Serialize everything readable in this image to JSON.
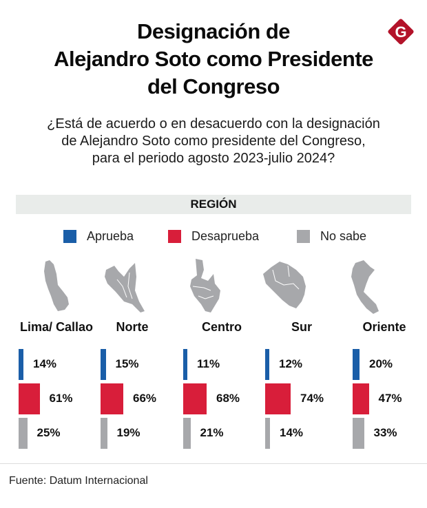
{
  "header": {
    "title_lines": [
      "Designación de",
      "Alejandro Soto como Presidente",
      "del Congreso"
    ],
    "logo_letter": "G",
    "logo_color": "#b3132a"
  },
  "subtitle_lines": [
    "¿Está de acuerdo o en desacuerdo con la designación",
    "de Alejandro Soto como presidente del Congreso,",
    "para el periodo agosto 2023-julio 2024?"
  ],
  "section_label": "REGIÓN",
  "legend": [
    {
      "label": "Aprueba",
      "color": "#1a5ea8"
    },
    {
      "label": "Desaprueba",
      "color": "#d81e3a"
    },
    {
      "label": "No sabe",
      "color": "#a7a8ab"
    }
  ],
  "chart_data": {
    "type": "bar",
    "title": "Designación de Alejandro Soto como Presidente del Congreso",
    "subtitle": "¿Está de acuerdo o en desacuerdo con la designación de Alejandro Soto como presidente del Congreso, para el periodo agosto 2023-julio 2024?",
    "group_label": "REGIÓN",
    "categories": [
      "Lima/ Callao",
      "Norte",
      "Centro",
      "Sur",
      "Oriente"
    ],
    "series": [
      {
        "name": "Aprueba",
        "color": "#1a5ea8",
        "values": [
          14,
          15,
          11,
          12,
          20
        ],
        "labels": [
          "14%",
          "15%",
          "11%",
          "12%",
          "20%"
        ]
      },
      {
        "name": "Desaprueba",
        "color": "#d81e3a",
        "values": [
          61,
          66,
          68,
          74,
          47
        ],
        "labels": [
          "61%",
          "66%",
          "68%",
          "74%",
          "47%"
        ]
      },
      {
        "name": "No sabe",
        "color": "#a7a8ab",
        "values": [
          25,
          19,
          21,
          14,
          33
        ],
        "labels": [
          "25%",
          "19%",
          "21%",
          "14%",
          "33%"
        ]
      }
    ],
    "unit": "%",
    "orientation": "horizontal",
    "legend_position": "top"
  },
  "footer": {
    "source": "Fuente: Datum Internacional"
  }
}
